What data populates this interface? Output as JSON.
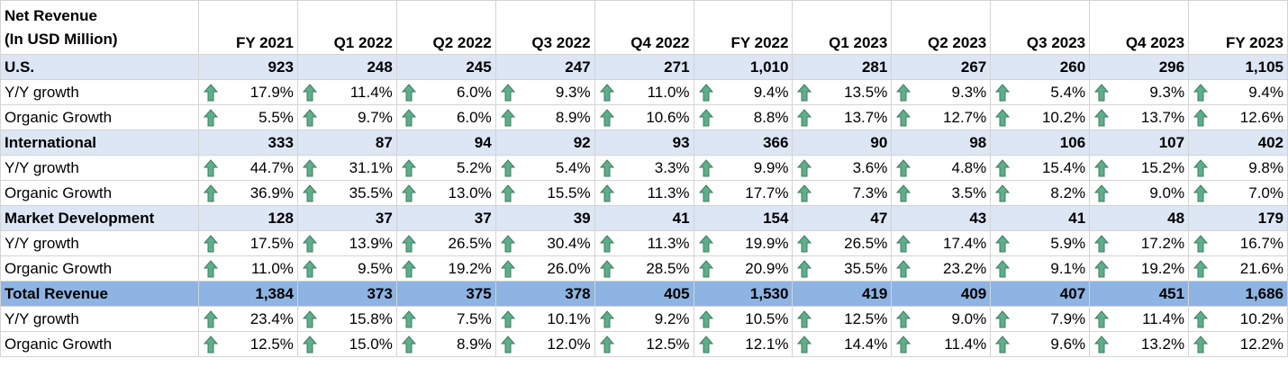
{
  "header": {
    "title_lines": [
      "Net Revenue",
      "(In USD Million)"
    ],
    "columns": [
      "FY 2021",
      "Q1 2022",
      "Q2 2022",
      "Q3 2022",
      "Q4 2022",
      "FY 2022",
      "Q1 2023",
      "Q2 2023",
      "Q3 2023",
      "Q4 2023",
      "FY 2023"
    ]
  },
  "table": {
    "rows": [
      {
        "label": "U.S.",
        "cells": [
          "923",
          "248",
          "245",
          "247",
          "271",
          "1,010",
          "281",
          "267",
          "260",
          "296",
          "1,105"
        ]
      },
      {
        "label": "Y/Y growth",
        "cells": [
          "17.9%",
          "11.4%",
          "6.0%",
          "9.3%",
          "11.0%",
          "9.4%",
          "13.5%",
          "9.3%",
          "5.4%",
          "9.3%",
          "9.4%"
        ]
      },
      {
        "label": "Organic Growth",
        "cells": [
          "5.5%",
          "9.7%",
          "6.0%",
          "8.9%",
          "10.6%",
          "8.8%",
          "13.7%",
          "12.7%",
          "10.2%",
          "13.7%",
          "12.6%"
        ]
      },
      {
        "label": "International",
        "cells": [
          "333",
          "87",
          "94",
          "92",
          "93",
          "366",
          "90",
          "98",
          "106",
          "107",
          "402"
        ]
      },
      {
        "label": "Y/Y growth",
        "cells": [
          "44.7%",
          "31.1%",
          "5.2%",
          "5.4%",
          "3.3%",
          "9.9%",
          "3.6%",
          "4.8%",
          "15.4%",
          "15.2%",
          "9.8%"
        ]
      },
      {
        "label": "Organic Growth",
        "cells": [
          "36.9%",
          "35.5%",
          "13.0%",
          "15.5%",
          "11.3%",
          "17.7%",
          "7.3%",
          "3.5%",
          "8.2%",
          "9.0%",
          "7.0%"
        ]
      },
      {
        "label": "Market Development",
        "cells": [
          "128",
          "37",
          "37",
          "39",
          "41",
          "154",
          "47",
          "43",
          "41",
          "48",
          "179"
        ]
      },
      {
        "label": "Y/Y growth",
        "cells": [
          "17.5%",
          "13.9%",
          "26.5%",
          "30.4%",
          "11.3%",
          "19.9%",
          "26.5%",
          "17.4%",
          "5.9%",
          "17.2%",
          "16.7%"
        ]
      },
      {
        "label": "Organic Growth",
        "cells": [
          "11.0%",
          "9.5%",
          "19.2%",
          "26.0%",
          "28.5%",
          "20.9%",
          "35.5%",
          "23.2%",
          "9.1%",
          "19.2%",
          "21.6%"
        ]
      },
      {
        "label": "Total Revenue",
        "cells": [
          "1,384",
          "373",
          "375",
          "378",
          "405",
          "1,530",
          "419",
          "409",
          "407",
          "451",
          "1,686"
        ]
      },
      {
        "label": "Y/Y growth",
        "cells": [
          "23.4%",
          "15.8%",
          "7.5%",
          "10.1%",
          "9.2%",
          "10.5%",
          "12.5%",
          "9.0%",
          "7.9%",
          "11.4%",
          "10.2%"
        ]
      },
      {
        "label": "Organic Growth",
        "cells": [
          "12.5%",
          "15.0%",
          "8.9%",
          "12.0%",
          "12.5%",
          "12.1%",
          "14.4%",
          "11.4%",
          "9.6%",
          "13.2%",
          "12.2%"
        ]
      }
    ]
  }
}
